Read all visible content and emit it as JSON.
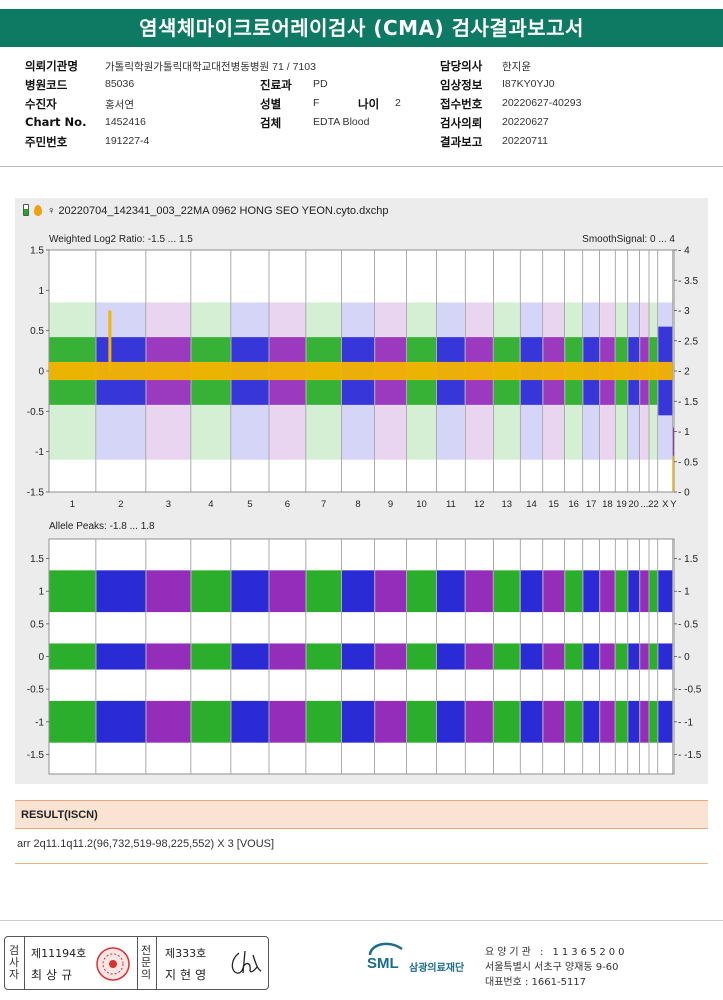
{
  "title": "염색체마이크로어레이검사 (CMA) 검사결과보고서",
  "info": {
    "institution_label": "의뢰기관명",
    "institution_value": "가톨릭학원가톨릭대학교대전병동병원 71 / 7103",
    "hospital_code_label": "병원코드",
    "hospital_code_value": "85036",
    "patient_label": "수진자",
    "patient_value": "홍서연",
    "chart_no_label": "Chart No.",
    "chart_no_value": "1452416",
    "resident_no_label": "주민번호",
    "resident_no_value": "191227-4",
    "department_label": "진료과",
    "department_value": "PD",
    "sex_label": "성별",
    "sex_value": "F",
    "age_label": "나이",
    "age_value": "2",
    "specimen_label": "검체",
    "specimen_value": "EDTA Blood",
    "doctor_label": "담당의사",
    "doctor_value": "한지윤",
    "clinical_label": "임상정보",
    "clinical_value": "I87KY0YJ0",
    "receipt_label": "접수번호",
    "receipt_value": "20220627-40293",
    "request_label": "검사의뢰",
    "request_value": "20220627",
    "report_label": "결과보고",
    "report_value": "20220711"
  },
  "chart": {
    "file_name": "20220704_142341_003_22MA 0962 HONG SEO YEON.cyto.dxchp",
    "top_title": "Weighted Log2 Ratio: -1.5 ... 1.5",
    "top_right_title": "SmoothSignal: 0 ... 4",
    "bottom_title": "Allele Peaks: -1.8 ... 1.8",
    "chromosome_labels": [
      "1",
      "2",
      "3",
      "4",
      "5",
      "6",
      "7",
      "8",
      "9",
      "10",
      "11",
      "12",
      "13",
      "14",
      "15",
      "16",
      "17",
      "18",
      "19",
      "20",
      "...",
      "22",
      "X",
      "Y"
    ],
    "top_left_ticks": [
      "1.5",
      "1",
      "0.5",
      "0",
      "-0.5",
      "-1",
      "-1.5"
    ],
    "top_right_ticks": [
      "4",
      "3.5",
      "3",
      "2.5",
      "2",
      "1.5",
      "1",
      "0.5",
      "0"
    ],
    "bottom_left_ticks": [
      "1.5",
      "1",
      "0.5",
      "0",
      "-0.5",
      "-1",
      "-1.5"
    ],
    "bottom_right_ticks": [
      "1.5",
      "1",
      "0.5",
      "0",
      "-0.5",
      "-1",
      "-1.5"
    ],
    "colors": {
      "green": "#14a514",
      "blue": "#1414d2",
      "purple": "#8a16b4",
      "smooth": "#f4b400"
    }
  },
  "chart_data": {
    "type": "scatter",
    "title": "Weighted Log2 Ratio / Allele Peaks",
    "x_categories": [
      "1",
      "2",
      "3",
      "4",
      "5",
      "6",
      "7",
      "8",
      "9",
      "10",
      "11",
      "12",
      "13",
      "14",
      "15",
      "16",
      "17",
      "18",
      "19",
      "20",
      "21",
      "22",
      "X",
      "Y"
    ],
    "log2_ratio_ylim": [
      -1.5,
      1.5
    ],
    "smooth_signal_ylim": [
      0,
      4
    ],
    "allele_peaks_ylim": [
      -1.8,
      1.8
    ],
    "allele_peak_bands": [
      1.0,
      0.0,
      -1.0
    ],
    "smooth_signal_baseline": 2,
    "smooth_signal_2q_gain": 3,
    "smooth_signal_Y": 0
  },
  "result": {
    "header": "RESULT(ISCN)",
    "text": "arr 2q11.1q11.2(96,732,519-98,225,552) X 3 [VOUS]"
  },
  "signatures": {
    "inspector_vertical": "검사자",
    "inspector_no": "제11194호",
    "inspector_name": "최상규",
    "specialist_vertical": "전문의",
    "specialist_no": "제333호",
    "specialist_name": "지현영"
  },
  "footer": {
    "logo": "SML",
    "org_name": "삼광의료재단",
    "institution_no": "요양기관 : 11365200",
    "address": "서울특별시 서초구 양재동 9-60",
    "phone": "대표번호 : 1661-5117"
  }
}
